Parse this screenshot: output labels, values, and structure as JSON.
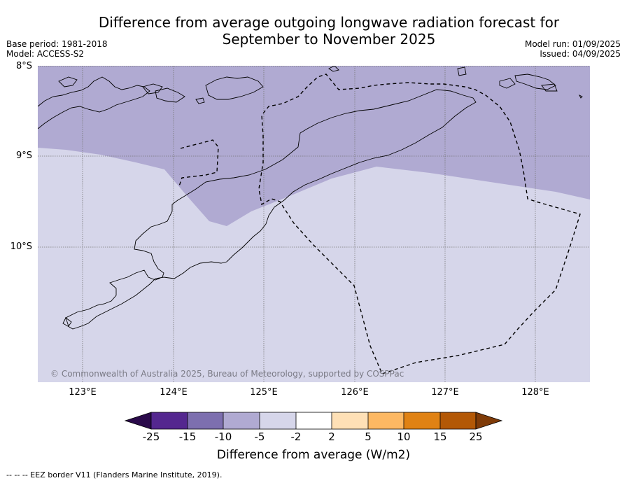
{
  "title_line1": "Difference from average outgoing longwave radiation forecast for",
  "title_line2": "September to November 2025",
  "base_period": "Base period: 1981-2018",
  "model": "Model: ACCESS-S2",
  "model_run": "Model run: 01/09/2025",
  "issued": "Issued: 04/09/2025",
  "lat_labels": [
    "8°S",
    "9°S",
    "10°S"
  ],
  "lon_labels": [
    "123°E",
    "124°E",
    "125°E",
    "126°E",
    "127°E",
    "128°E"
  ],
  "copyright": "© Commonwealth of Australia 2025, Bureau of Meteorology, supported by COSPPac",
  "colorbar": {
    "ticks": [
      "-25",
      "-15",
      "-10",
      "-5",
      "-2",
      "2",
      "5",
      "10",
      "15",
      "25"
    ],
    "colors": [
      "#2a0a4a",
      "#54278f",
      "#7d6faf",
      "#b0aad2",
      "#d6d6ea",
      "#ffffff",
      "#fee0b6",
      "#fdb863",
      "#e08214",
      "#b35806",
      "#7f3b08"
    ],
    "label": "Difference from average (W/m2)"
  },
  "footnote": "--  --  -- EEZ border V11 (Flanders Marine Institute, 2019).",
  "map_colors": {
    "minus_5_to_minus_10": "#b0aad2",
    "minus_2_to_minus_5": "#d6d6ea"
  }
}
